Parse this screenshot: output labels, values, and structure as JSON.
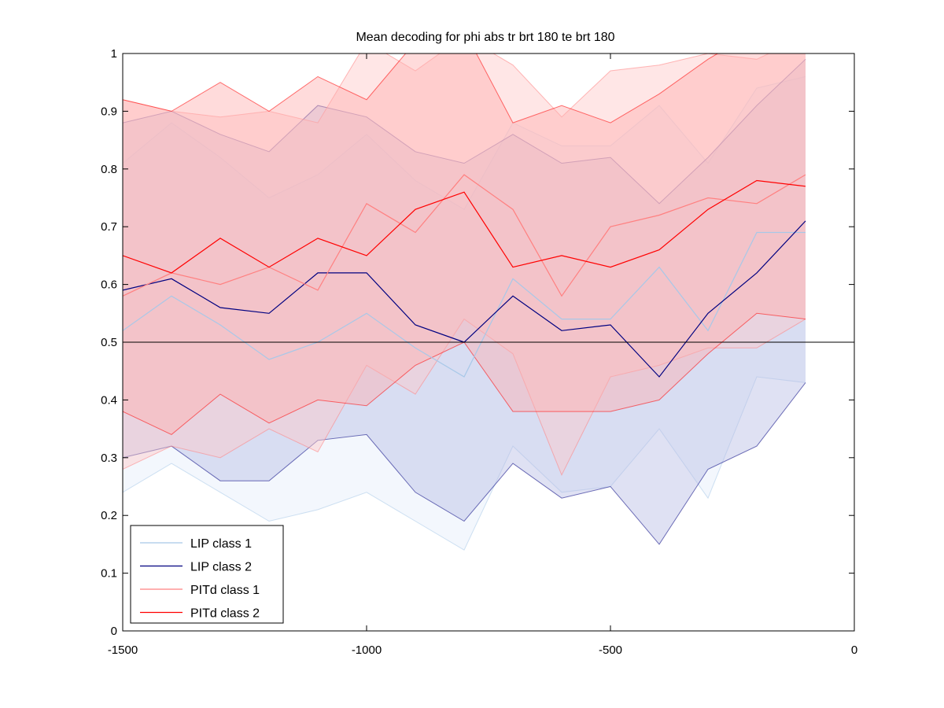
{
  "chart_data": {
    "type": "line",
    "title": "Mean decoding for phi abs tr brt 180 te brt 180",
    "xlabel": "",
    "ylabel": "",
    "xlim": [
      -1500,
      0
    ],
    "ylim": [
      0,
      1
    ],
    "xticks": [
      -1500,
      -1000,
      -500,
      0
    ],
    "yticks": [
      0,
      0.1,
      0.2,
      0.3,
      0.4,
      0.5,
      0.6,
      0.7,
      0.8,
      0.9,
      1
    ],
    "reference_line": 0.5,
    "legend_position": "bottom-left",
    "x": [
      -1500,
      -1400,
      -1300,
      -1200,
      -1100,
      -1000,
      -900,
      -800,
      -700,
      -600,
      -500,
      -400,
      -300,
      -200,
      -100
    ],
    "series": [
      {
        "name": "LIP class 1",
        "color": "#a8c8e8",
        "band_fill": "#dde9f8",
        "band_opacity": 0.35,
        "mean": [
          0.52,
          0.58,
          0.53,
          0.47,
          0.5,
          0.55,
          0.49,
          0.44,
          0.61,
          0.54,
          0.54,
          0.63,
          0.52,
          0.69,
          0.69
        ],
        "upper": [
          0.81,
          0.88,
          0.82,
          0.75,
          0.79,
          0.86,
          0.78,
          0.73,
          0.88,
          0.84,
          0.84,
          0.91,
          0.81,
          0.94,
          0.96
        ],
        "lower": [
          0.24,
          0.29,
          0.24,
          0.19,
          0.21,
          0.24,
          0.19,
          0.14,
          0.32,
          0.24,
          0.25,
          0.35,
          0.23,
          0.44,
          0.43
        ]
      },
      {
        "name": "LIP class 2",
        "color": "#000080",
        "band_fill": "#b8bce4",
        "band_opacity": 0.45,
        "mean": [
          0.59,
          0.61,
          0.56,
          0.55,
          0.62,
          0.62,
          0.53,
          0.5,
          0.58,
          0.52,
          0.53,
          0.44,
          0.55,
          0.62,
          0.71
        ],
        "upper": [
          0.88,
          0.9,
          0.86,
          0.83,
          0.91,
          0.89,
          0.83,
          0.81,
          0.86,
          0.81,
          0.82,
          0.74,
          0.82,
          0.91,
          0.99
        ],
        "lower": [
          0.3,
          0.32,
          0.26,
          0.26,
          0.33,
          0.34,
          0.24,
          0.19,
          0.29,
          0.23,
          0.25,
          0.15,
          0.28,
          0.32,
          0.43
        ]
      },
      {
        "name": "PITd class 1",
        "color": "#ff8080",
        "band_fill": "#ffc8c8",
        "band_opacity": 0.45,
        "mean": [
          0.58,
          0.62,
          0.6,
          0.63,
          0.59,
          0.74,
          0.69,
          0.79,
          0.73,
          0.58,
          0.7,
          0.72,
          0.75,
          0.74,
          0.79
        ],
        "upper": [
          0.92,
          0.9,
          0.89,
          0.9,
          0.88,
          1.02,
          0.97,
          1.03,
          0.98,
          0.89,
          0.97,
          0.98,
          1.0,
          0.99,
          1.03
        ],
        "lower": [
          0.28,
          0.32,
          0.3,
          0.35,
          0.31,
          0.46,
          0.41,
          0.54,
          0.48,
          0.27,
          0.44,
          0.46,
          0.49,
          0.49,
          0.54
        ]
      },
      {
        "name": "PITd class 2",
        "color": "#ff0000",
        "band_fill": "#ffb0b0",
        "band_opacity": 0.45,
        "mean": [
          0.65,
          0.62,
          0.68,
          0.63,
          0.68,
          0.65,
          0.73,
          0.76,
          0.63,
          0.65,
          0.63,
          0.66,
          0.73,
          0.78,
          0.77
        ],
        "upper": [
          0.92,
          0.9,
          0.95,
          0.9,
          0.96,
          0.92,
          1.02,
          1.04,
          0.88,
          0.91,
          0.88,
          0.93,
          0.99,
          1.04,
          1.02
        ],
        "lower": [
          0.38,
          0.34,
          0.41,
          0.36,
          0.4,
          0.39,
          0.46,
          0.5,
          0.38,
          0.38,
          0.38,
          0.4,
          0.48,
          0.55,
          0.54
        ]
      }
    ]
  }
}
